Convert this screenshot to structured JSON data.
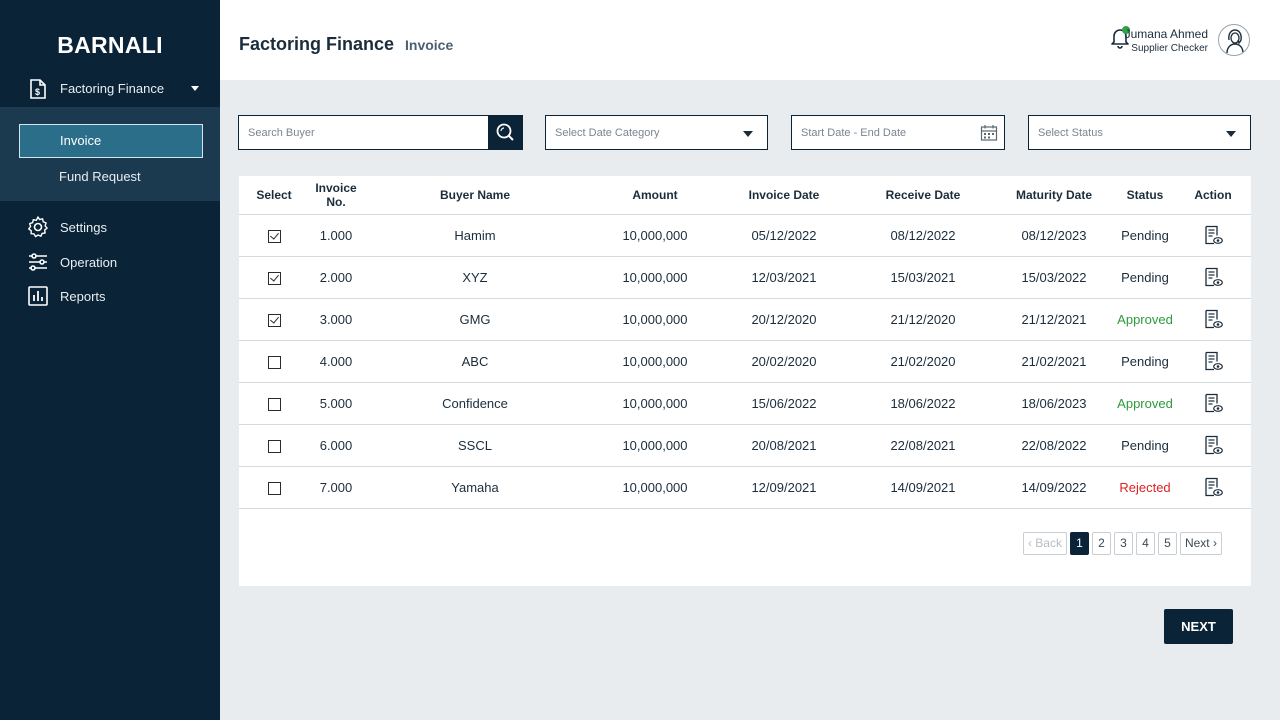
{
  "sidebar": {
    "brand": "BARNALI",
    "parent_label": "Factoring Finance",
    "sub_items": [
      "Invoice",
      "Fund Request"
    ],
    "items": [
      {
        "label": "Settings",
        "icon": "gear-icon"
      },
      {
        "label": "Operation",
        "icon": "sliders-icon"
      },
      {
        "label": "Reports",
        "icon": "chart-icon"
      }
    ]
  },
  "header": {
    "title": "Factoring Finance",
    "crumb": "Invoice",
    "user_name": "Jumana Ahmed",
    "user_role": "Supplier Checker"
  },
  "filters": {
    "search_placeholder": "Search Buyer",
    "date_category": "Select Date Category",
    "date_range": "Start Date - End Date",
    "status": "Select Status"
  },
  "table": {
    "headers": [
      "Select",
      "Invoice No.",
      "Buyer Name",
      "Amount",
      "Invoice Date",
      "Receive Date",
      "Maturity Date",
      "Status",
      "Action"
    ],
    "rows": [
      {
        "checked": true,
        "invoice": "1.000",
        "buyer": "Hamim",
        "amount": "10,000,000",
        "invoice_date": "05/12/2022",
        "receive_date": "08/12/2022",
        "maturity_date": "08/12/2023",
        "status": "Pending"
      },
      {
        "checked": true,
        "invoice": "2.000",
        "buyer": "XYZ",
        "amount": "10,000,000",
        "invoice_date": "12/03/2021",
        "receive_date": "15/03/2021",
        "maturity_date": "15/03/2022",
        "status": "Pending"
      },
      {
        "checked": true,
        "invoice": "3.000",
        "buyer": "GMG",
        "amount": "10,000,000",
        "invoice_date": "20/12/2020",
        "receive_date": "21/12/2020",
        "maturity_date": "21/12/2021",
        "status": "Approved"
      },
      {
        "checked": false,
        "invoice": "4.000",
        "buyer": "ABC",
        "amount": "10,000,000",
        "invoice_date": "20/02/2020",
        "receive_date": "21/02/2020",
        "maturity_date": "21/02/2021",
        "status": "Pending"
      },
      {
        "checked": false,
        "invoice": "5.000",
        "buyer": "Confidence",
        "amount": "10,000,000",
        "invoice_date": "15/06/2022",
        "receive_date": "18/06/2022",
        "maturity_date": "18/06/2023",
        "status": "Approved"
      },
      {
        "checked": false,
        "invoice": "6.000",
        "buyer": "SSCL",
        "amount": "10,000,000",
        "invoice_date": "20/08/2021",
        "receive_date": "22/08/2021",
        "maturity_date": "22/08/2022",
        "status": "Pending"
      },
      {
        "checked": false,
        "invoice": "7.000",
        "buyer": "Yamaha",
        "amount": "10,000,000",
        "invoice_date": "12/09/2021",
        "receive_date": "14/09/2021",
        "maturity_date": "14/09/2022",
        "status": "Rejected"
      }
    ]
  },
  "pagination": {
    "back": "Back",
    "pages": [
      "1",
      "2",
      "3",
      "4",
      "5"
    ],
    "current": "1",
    "next": "Next"
  },
  "next_button": "NEXT",
  "colors": {
    "sidebar": "#0b2336",
    "accent": "#2b6e8a",
    "approved": "#2e9a3d",
    "rejected": "#e02222"
  }
}
